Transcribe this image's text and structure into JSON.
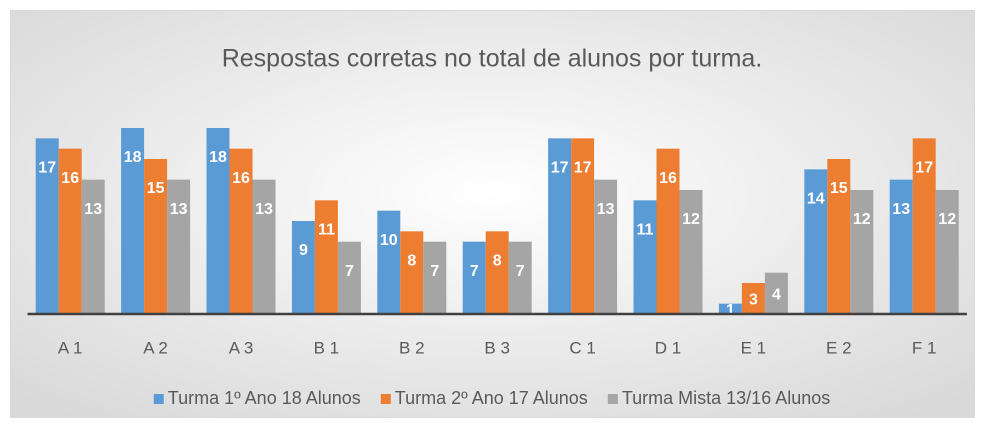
{
  "chart_data": {
    "type": "bar",
    "title": "Respostas corretas no total de alunos por turma.",
    "categories": [
      "A 1",
      "A 2",
      "A 3",
      "B 1",
      "B 2",
      "B 3",
      "C 1",
      "D 1",
      "E 1",
      "E 2",
      "F 1"
    ],
    "series": [
      {
        "name": "Turma 1º Ano 18 Alunos",
        "color": "#5b9bd5",
        "values": [
          17,
          18,
          18,
          9,
          10,
          7,
          17,
          11,
          1,
          14,
          13
        ]
      },
      {
        "name": "Turma 2º Ano 17 Alunos",
        "color": "#ed7d31",
        "values": [
          16,
          15,
          16,
          11,
          8,
          8,
          17,
          16,
          3,
          15,
          17
        ]
      },
      {
        "name": "Turma Mista 13/16 Alunos",
        "color": "#a5a5a5",
        "values": [
          13,
          13,
          13,
          7,
          7,
          7,
          13,
          12,
          4,
          12,
          12
        ]
      }
    ],
    "legend": "bottom"
  }
}
